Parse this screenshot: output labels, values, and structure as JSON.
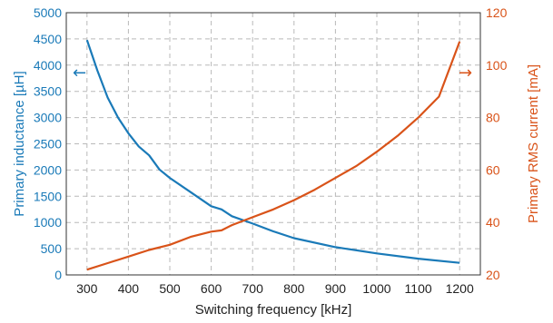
{
  "chart_data": {
    "type": "line",
    "xlabel": "Switching frequency [kHz]",
    "ylabel_left": "Primary inductance [µH]",
    "ylabel_right": "Primary RMS current [mA]",
    "xlim": [
      250,
      1250
    ],
    "ylim_left": [
      0,
      5000
    ],
    "ylim_right": [
      20,
      120
    ],
    "x_ticks": [
      "300",
      "400",
      "500",
      "600",
      "700",
      "800",
      "900",
      "1000",
      "1100",
      "1200"
    ],
    "y_left_ticks": [
      "0",
      "500",
      "1000",
      "1500",
      "2000",
      "2500",
      "3000",
      "3500",
      "4000",
      "4500",
      "5000"
    ],
    "y_right_ticks": [
      "20",
      "40",
      "60",
      "80",
      "100",
      "120"
    ],
    "grid": true,
    "series": [
      {
        "axis": "left",
        "color": "#1a7ab8",
        "x": [
          300,
          325,
          350,
          375,
          400,
          425,
          450,
          475,
          500,
          550,
          600,
          625,
          650,
          700,
          750,
          800,
          900,
          1000,
          1100,
          1200
        ],
        "y": [
          4480,
          3900,
          3380,
          3000,
          2700,
          2450,
          2280,
          2010,
          1850,
          1580,
          1310,
          1250,
          1120,
          980,
          830,
          700,
          530,
          410,
          310,
          230
        ]
      },
      {
        "axis": "right",
        "color": "#d95319",
        "x": [
          300,
          350,
          400,
          450,
          500,
          550,
          600,
          625,
          650,
          700,
          750,
          800,
          850,
          900,
          950,
          1000,
          1050,
          1100,
          1150,
          1200
        ],
        "y": [
          22,
          24.5,
          27,
          29.5,
          31.5,
          34.5,
          36.5,
          37,
          39,
          42,
          45,
          48.5,
          52.5,
          57,
          61.5,
          67,
          73,
          80,
          88,
          109
        ]
      }
    ],
    "annotations": [
      {
        "text": "←",
        "axis": "left",
        "color": "#1a7ab8"
      },
      {
        "text": "→",
        "axis": "right",
        "color": "#d95319"
      }
    ]
  }
}
